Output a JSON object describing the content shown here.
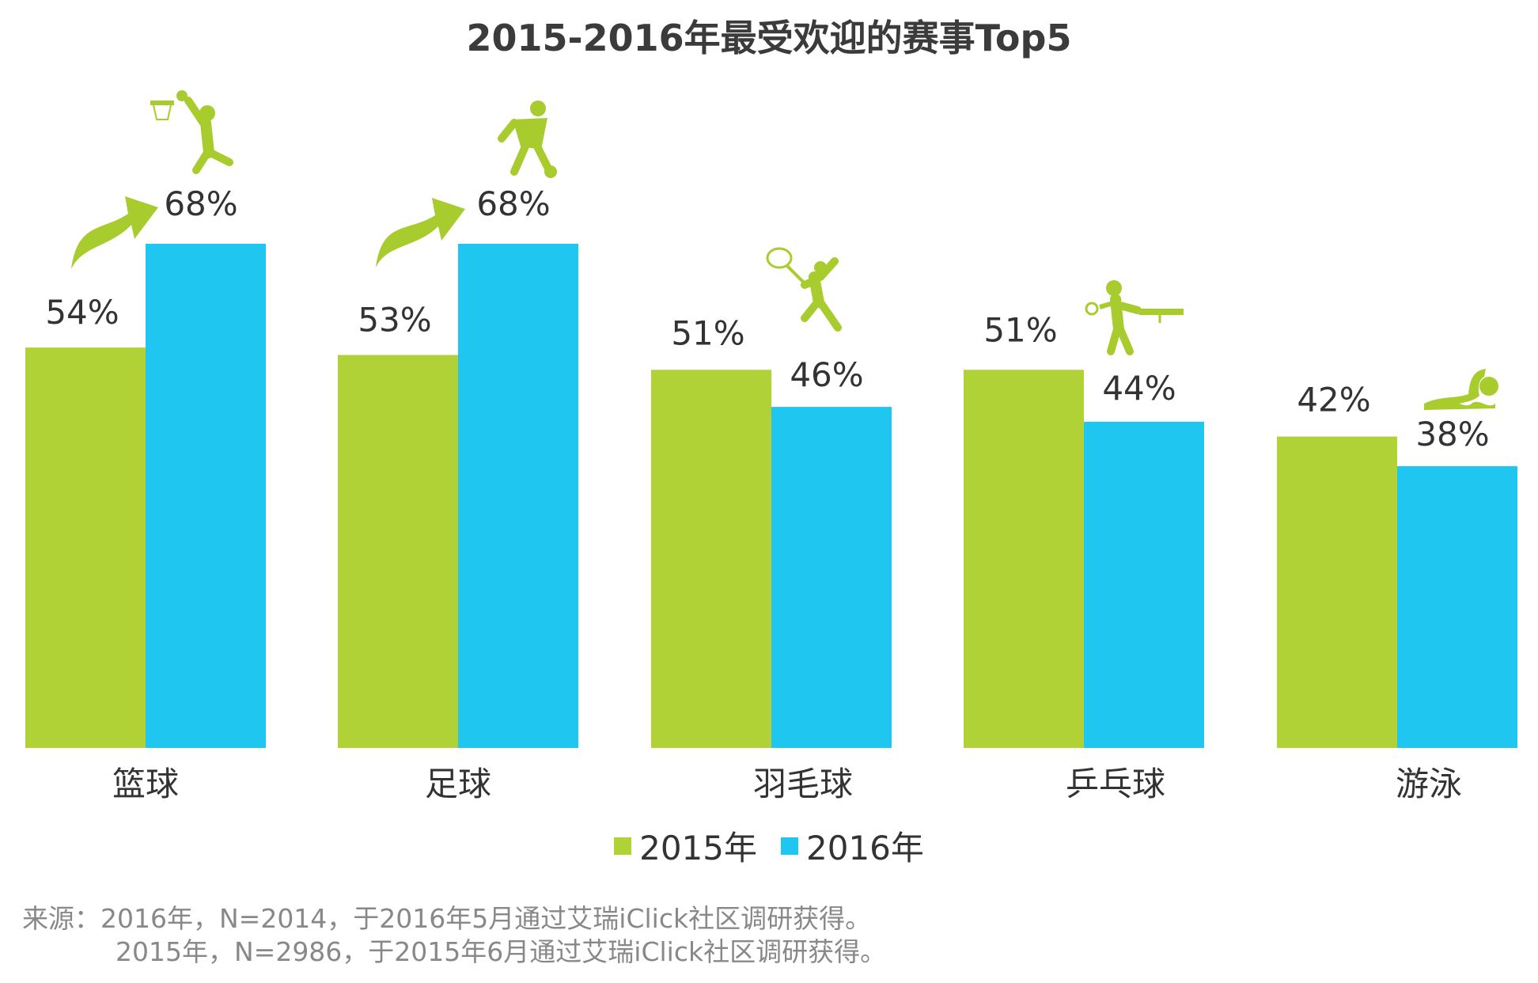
{
  "chart_data": {
    "type": "bar",
    "title": "2015-2016年最受欢迎的赛事Top5",
    "categories": [
      "篮球",
      "足球",
      "羽毛球",
      "乒乓球",
      "游泳"
    ],
    "series": [
      {
        "name": "2015年",
        "values": [
          54,
          53,
          51,
          51,
          42
        ],
        "labels": [
          "54%",
          "53%",
          "51%",
          "51%",
          "42%"
        ],
        "color": "#b0d236"
      },
      {
        "name": "2016年",
        "values": [
          68,
          68,
          46,
          44,
          38
        ],
        "labels": [
          "68%",
          "68%",
          "46%",
          "44%",
          "38%"
        ],
        "color": "#1fc6ef"
      }
    ],
    "ylim": [
      0,
      68
    ],
    "grid": false,
    "legend_position": "bottom",
    "icons": [
      "basketball-player-icon",
      "soccer-player-icon",
      "badminton-player-icon",
      "table-tennis-player-icon",
      "swimmer-icon"
    ],
    "icon_color": "#a8cc2e"
  },
  "source": {
    "line1": "来源：2016年，N=2014，于2016年5月通过艾瑞iClick社区调研获得。",
    "line2": "2015年，N=2986，于2015年6月通过艾瑞iClick社区调研获得。"
  }
}
